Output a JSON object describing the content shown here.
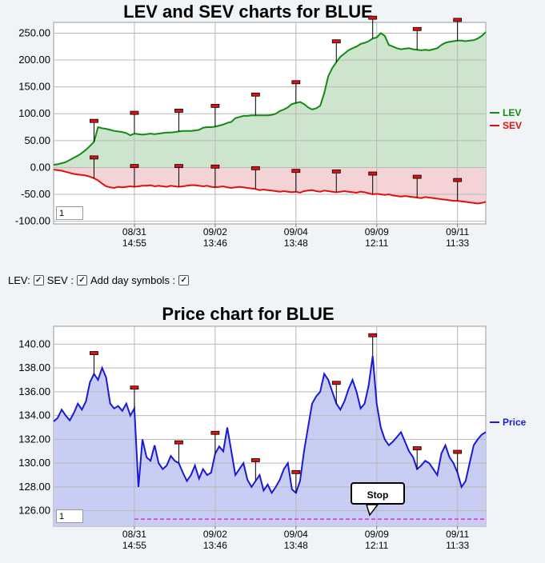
{
  "controls": {
    "lev_label": "LEV:",
    "sev_label": "SEV :",
    "day_label": "Add day symbols :"
  },
  "chart_data": [
    {
      "type": "line",
      "title": "LEV and SEV charts for BLUE",
      "x_ticks": [
        {
          "date": "08/31",
          "time": "14:55"
        },
        {
          "date": "09/02",
          "time": "13:46"
        },
        {
          "date": "09/04",
          "time": "13:48"
        },
        {
          "date": "09/09",
          "time": "12:11"
        },
        {
          "date": "09/11",
          "time": "11:33"
        }
      ],
      "x_tick_index": [
        20,
        40,
        60,
        80,
        100
      ],
      "n_points": 108,
      "ylim": [
        -105,
        270
      ],
      "y_ticks": [
        250,
        200,
        150,
        100,
        50,
        0,
        -50,
        -100
      ],
      "legend_position": "right",
      "zoom_value": "1",
      "colors": {
        "LEV": "#138a13",
        "SEV": "#e01010",
        "LEV_fill": "#cde4cd",
        "SEV_fill": "#f3d3d5"
      },
      "series": [
        {
          "name": "LEV",
          "values": [
            5,
            6,
            8,
            10,
            14,
            18,
            22,
            27,
            33,
            40,
            48,
            75,
            73,
            72,
            70,
            68,
            67,
            66,
            64,
            60,
            63,
            62,
            61,
            62,
            63,
            62,
            63,
            64,
            65,
            65,
            66,
            67,
            68,
            68,
            68,
            69,
            70,
            74,
            75,
            75,
            76,
            78,
            80,
            83,
            85,
            92,
            94,
            96,
            96,
            97,
            97,
            97,
            97,
            97,
            98,
            100,
            105,
            108,
            112,
            118,
            120,
            122,
            118,
            112,
            108,
            110,
            115,
            138,
            170,
            185,
            196,
            206,
            212,
            218,
            222,
            225,
            230,
            232,
            235,
            240,
            242,
            250,
            245,
            228,
            225,
            222,
            220,
            221,
            222,
            220,
            219,
            218,
            219,
            218,
            220,
            222,
            228,
            232,
            234,
            235,
            236,
            236,
            235,
            236,
            237,
            240,
            245,
            252
          ]
        },
        {
          "name": "SEV",
          "values": [
            -4,
            -5,
            -6,
            -8,
            -10,
            -12,
            -13,
            -14,
            -15,
            -17,
            -20,
            -24,
            -30,
            -35,
            -37,
            -38,
            -36,
            -37,
            -36,
            -35,
            -36,
            -35,
            -34,
            -34,
            -33,
            -35,
            -34,
            -35,
            -36,
            -34,
            -35,
            -36,
            -35,
            -34,
            -33,
            -33,
            -34,
            -35,
            -34,
            -36,
            -37,
            -36,
            -35,
            -37,
            -38,
            -37,
            -36,
            -37,
            -38,
            -39,
            -40,
            -42,
            -41,
            -42,
            -43,
            -44,
            -45,
            -44,
            -45,
            -46,
            -45,
            -47,
            -44,
            -43,
            -42,
            -44,
            -45,
            -43,
            -44,
            -45,
            -46,
            -45,
            -44,
            -45,
            -46,
            -47,
            -45,
            -46,
            -48,
            -50,
            -49,
            -50,
            -51,
            -50,
            -52,
            -53,
            -54,
            -53,
            -54,
            -55,
            -56,
            -57,
            -55,
            -56,
            -57,
            -58,
            -59,
            -60,
            -61,
            -62,
            -62,
            -63,
            -64,
            -65,
            -66,
            -67,
            -66,
            -64
          ]
        }
      ],
      "markers": {
        "LEV": [
          10,
          20,
          31,
          40,
          50,
          60,
          70,
          79,
          90,
          100
        ],
        "SEV": [
          10,
          20,
          31,
          40,
          50,
          60,
          70,
          79,
          90,
          100
        ]
      }
    },
    {
      "type": "line",
      "title": "Price chart for BLUE",
      "x_ticks": [
        {
          "date": "08/31",
          "time": "14:55"
        },
        {
          "date": "09/02",
          "time": "13:46"
        },
        {
          "date": "09/04",
          "time": "13:48"
        },
        {
          "date": "09/09",
          "time": "12:11"
        },
        {
          "date": "09/11",
          "time": "11:33"
        }
      ],
      "x_tick_index": [
        20,
        40,
        60,
        80,
        100
      ],
      "n_points": 108,
      "ylim": [
        124.7,
        141.5
      ],
      "y_ticks": [
        140,
        138,
        136,
        134,
        132,
        130,
        128,
        126
      ],
      "legend_position": "right",
      "zoom_value": "1",
      "stop_label": "Stop",
      "stop_level": 125.3,
      "colors": {
        "Price": "#1a1ad6",
        "Price_fill": "#c8cdf3",
        "stop_line": "#e030e0"
      },
      "series": [
        {
          "name": "Price",
          "values": [
            133.5,
            133.8,
            134.5,
            134.0,
            133.6,
            134.2,
            135.0,
            134.5,
            135.2,
            136.8,
            137.5,
            137.0,
            138.0,
            137.2,
            135.0,
            134.6,
            134.8,
            134.4,
            135.0,
            134.0,
            134.6,
            128.0,
            132.0,
            130.5,
            130.2,
            131.5,
            130.0,
            129.5,
            129.8,
            130.6,
            130.2,
            130.0,
            129.2,
            128.5,
            129.0,
            129.8,
            128.7,
            129.5,
            129.0,
            129.2,
            130.8,
            131.4,
            131.0,
            133.0,
            131.0,
            129.0,
            129.5,
            130.0,
            128.6,
            128.0,
            128.5,
            129.0,
            127.7,
            128.2,
            127.5,
            128.0,
            128.6,
            129.5,
            130.0,
            127.8,
            127.5,
            128.5,
            131.0,
            133.0,
            135.0,
            135.6,
            136.0,
            137.5,
            137.0,
            136.0,
            135.0,
            134.5,
            135.2,
            136.2,
            137.0,
            136.0,
            134.6,
            135.0,
            136.5,
            139.0,
            135.0,
            133.0,
            132.0,
            131.5,
            131.8,
            132.2,
            132.6,
            131.8,
            131.0,
            130.5,
            129.5,
            129.8,
            130.2,
            130.0,
            129.5,
            129.0,
            130.8,
            131.5,
            130.5,
            130.0,
            129.2,
            128.0,
            128.5,
            130.0,
            131.5,
            132.0,
            132.4,
            132.6
          ]
        }
      ],
      "markers": {
        "Price": [
          10,
          20,
          31,
          40,
          50,
          60,
          70,
          79,
          90,
          100
        ]
      }
    }
  ]
}
